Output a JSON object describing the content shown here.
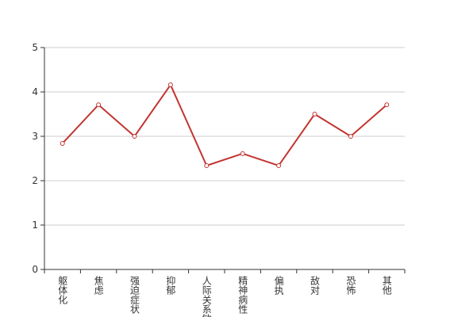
{
  "chart_data": {
    "type": "line",
    "categories": [
      "躯体化",
      "焦虑",
      "强迫症状",
      "抑郁",
      "人际关系敏感",
      "精神病性",
      "偏执",
      "敌对",
      "恐怖",
      "其他"
    ],
    "series": [
      {
        "name": "",
        "color": "#c23531",
        "values": [
          2.84,
          3.71,
          3.0,
          4.16,
          2.34,
          2.61,
          2.34,
          3.5,
          3.0,
          3.71
        ]
      }
    ],
    "ylim": [
      0,
      5
    ],
    "yticks": [
      0,
      1,
      2,
      3,
      4,
      5
    ],
    "grid": true
  }
}
